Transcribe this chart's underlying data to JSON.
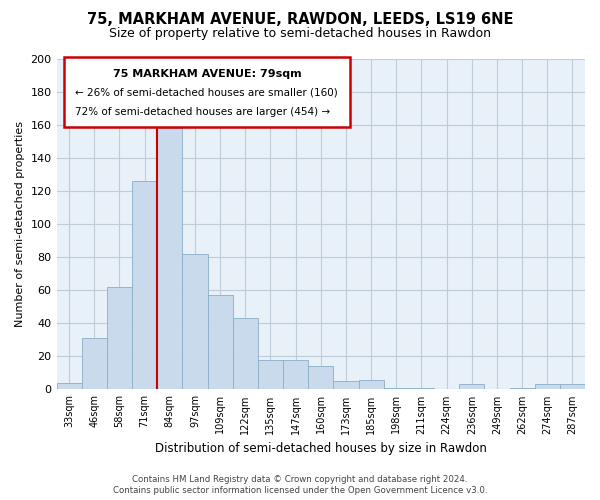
{
  "title": "75, MARKHAM AVENUE, RAWDON, LEEDS, LS19 6NE",
  "subtitle": "Size of property relative to semi-detached houses in Rawdon",
  "xlabel": "Distribution of semi-detached houses by size in Rawdon",
  "ylabel": "Number of semi-detached properties",
  "bar_color": "#c8daec",
  "bar_edge_color": "#8aaec8",
  "highlight_color": "#cc0000",
  "categories": [
    "33sqm",
    "46sqm",
    "58sqm",
    "71sqm",
    "84sqm",
    "97sqm",
    "109sqm",
    "122sqm",
    "135sqm",
    "147sqm",
    "160sqm",
    "173sqm",
    "185sqm",
    "198sqm",
    "211sqm",
    "224sqm",
    "236sqm",
    "249sqm",
    "262sqm",
    "274sqm",
    "287sqm"
  ],
  "values": [
    4,
    31,
    62,
    126,
    158,
    82,
    57,
    43,
    18,
    18,
    14,
    5,
    6,
    1,
    1,
    0,
    3,
    0,
    1,
    3,
    3
  ],
  "ylim": [
    0,
    200
  ],
  "yticks": [
    0,
    20,
    40,
    60,
    80,
    100,
    120,
    140,
    160,
    180,
    200
  ],
  "highlight_bar_index": 4,
  "annotation_title": "75 MARKHAM AVENUE: 79sqm",
  "annotation_line1": "← 26% of semi-detached houses are smaller (160)",
  "annotation_line2": "72% of semi-detached houses are larger (454) →",
  "footer_line1": "Contains HM Land Registry data © Crown copyright and database right 2024.",
  "footer_line2": "Contains public sector information licensed under the Open Government Licence v3.0.",
  "bg_color": "#ffffff",
  "plot_bg_color": "#e8f0f8",
  "grid_color": "#c0ccd8",
  "title_fontsize": 10.5,
  "subtitle_fontsize": 9
}
